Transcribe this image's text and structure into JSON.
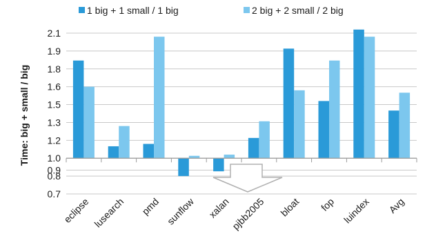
{
  "chart_data": {
    "type": "bar",
    "title": "",
    "xlabel": "",
    "ylabel": "Time: big + small / big",
    "yticks": [
      "0.7",
      "0.8",
      "0.9",
      "1.0",
      "1.2",
      "1.3",
      "1.5",
      "1.6",
      "1.8",
      "1.9",
      "2.1"
    ],
    "ytick_values": [
      0.7,
      0.85,
      0.9,
      1.0,
      1.15,
      1.3,
      1.45,
      1.6,
      1.75,
      1.9,
      2.05
    ],
    "ylim": [
      0.7,
      2.05
    ],
    "baseline": 1.0,
    "grid": true,
    "legend_position": "top",
    "categories": [
      "eclipse",
      "lusearch",
      "pmd",
      "sunflow",
      "xalan",
      "pjbb2005",
      "bloat",
      "fop",
      "luindex",
      "Avg"
    ],
    "series": [
      {
        "name": "1 big + 1 small / 1 big",
        "color": "#2a9ad8",
        "values": [
          1.82,
          1.1,
          1.12,
          0.85,
          0.89,
          1.17,
          1.92,
          1.48,
          2.08,
          1.4
        ]
      },
      {
        "name": "2 big + 2 small / 2 big",
        "color": "#7cc7ee",
        "values": [
          1.6,
          1.27,
          2.02,
          1.02,
          1.03,
          1.31,
          1.57,
          1.82,
          2.02,
          1.55
        ]
      }
    ],
    "annotation": "down-arrow-outline"
  }
}
